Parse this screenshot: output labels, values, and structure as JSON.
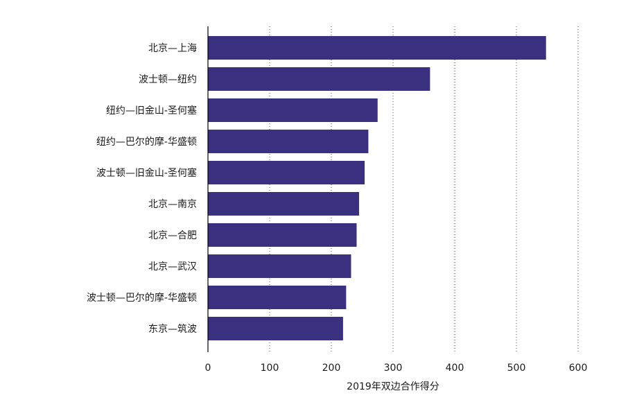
{
  "colors": {
    "bar": "#3a3080"
  },
  "chart_data": {
    "type": "bar",
    "orientation": "horizontal",
    "categories": [
      "北京—上海",
      "波士顿—纽约",
      "纽约—旧金山-圣何塞",
      "纽约—巴尔的摩-华盛顿",
      "波士顿—旧金山-圣何塞",
      "北京—南京",
      "北京—合肥",
      "北京—武汉",
      "波士顿—巴尔的摩-华盛顿",
      "东京—筑波"
    ],
    "values": [
      548,
      360,
      275,
      260,
      254,
      245,
      241,
      232,
      224,
      219
    ],
    "xlabel": "2019年双边合作得分",
    "ylabel": "",
    "xlim": [
      0,
      600
    ],
    "xticks": [
      "0",
      "100",
      "200",
      "300",
      "400",
      "500",
      "600"
    ],
    "grid": "vertical-dotted",
    "legend": "none"
  }
}
